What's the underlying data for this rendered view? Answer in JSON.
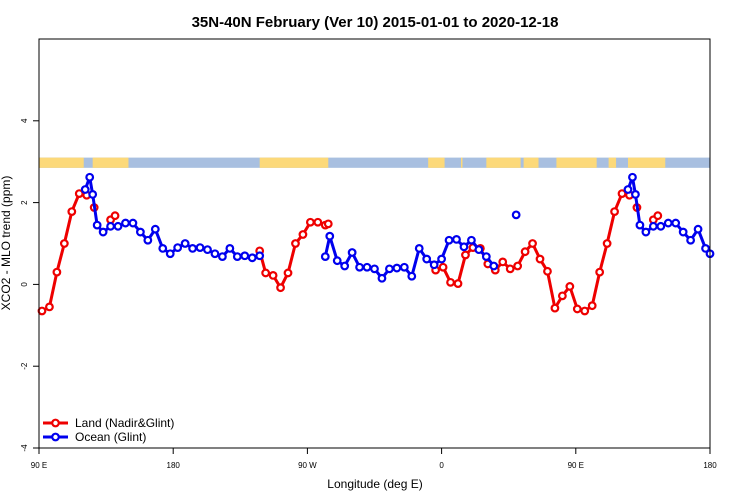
{
  "chart_data": {
    "type": "line",
    "title": "35N-40N February (Ver 10)   2015-01-01 to 2020-12-18",
    "xlabel": "Longitude (deg E)",
    "ylabel": "XCO2 - MLO trend (ppm)",
    "xlim": [
      90,
      540
    ],
    "ylim": [
      -4,
      6
    ],
    "xticks": [
      {
        "value": 90,
        "label": "90 E"
      },
      {
        "value": 180,
        "label": "180"
      },
      {
        "value": 270,
        "label": "90 W"
      },
      {
        "value": 360,
        "label": "0"
      },
      {
        "value": 450,
        "label": "90 E"
      },
      {
        "value": 540,
        "label": "180"
      }
    ],
    "yticks": [
      {
        "value": -4,
        "label": "-4"
      },
      {
        "value": -2,
        "label": "-2"
      },
      {
        "value": 0,
        "label": "0"
      },
      {
        "value": 2,
        "label": "2"
      },
      {
        "value": 4,
        "label": "4"
      }
    ],
    "legend_position": "bottom-left",
    "land_band": {
      "y_range": [
        2.85,
        3.1
      ],
      "ocean_color": "#a8bfe0",
      "land_color": "#fcd97a",
      "land_segments": [
        [
          90,
          120
        ],
        [
          126,
          150
        ],
        [
          238,
          284
        ],
        [
          351,
          362
        ],
        [
          373,
          374
        ],
        [
          390,
          413
        ],
        [
          415,
          425
        ],
        [
          437,
          464
        ],
        [
          472,
          477
        ],
        [
          485,
          510
        ]
      ]
    },
    "series": [
      {
        "name": "Land (Nadir&Glint)",
        "color": "#ee0000",
        "segments": [
          {
            "x": [
              92,
              97,
              102,
              107,
              112,
              117,
              122
            ],
            "y": [
              -0.65,
              -0.55,
              0.3,
              1.0,
              1.78,
              2.22,
              2.18
            ]
          },
          {
            "x": [
              127
            ],
            "y": [
              1.88
            ]
          },
          {
            "x": [
              138,
              141
            ],
            "y": [
              1.58,
              1.68
            ]
          },
          {
            "x": [
              238,
              242,
              247,
              252,
              257,
              262,
              267,
              272,
              277,
              282,
              284
            ],
            "y": [
              0.82,
              0.28,
              0.22,
              -0.08,
              0.28,
              1.0,
              1.22,
              1.52,
              1.52,
              1.45,
              1.48
            ]
          },
          {
            "x": [
              356,
              361,
              366,
              371,
              376,
              381,
              386,
              391,
              396,
              401,
              406
            ],
            "y": [
              0.35,
              0.42,
              0.05,
              0.02,
              0.72,
              0.9,
              0.88,
              0.5,
              0.35,
              0.55,
              0.38
            ]
          },
          {
            "x": [
              411,
              416,
              421,
              426,
              431,
              436,
              441,
              446,
              451,
              456,
              461,
              466,
              471,
              476,
              481,
              486
            ],
            "y": [
              0.45,
              0.8,
              1.0,
              0.62,
              0.32,
              -0.58,
              -0.28,
              -0.05,
              -0.6,
              -0.65,
              -0.52,
              0.3,
              1.0,
              1.78,
              2.22,
              2.18
            ]
          },
          {
            "x": [
              491
            ],
            "y": [
              1.88
            ]
          },
          {
            "x": [
              502,
              505
            ],
            "y": [
              1.58,
              1.68
            ]
          }
        ]
      },
      {
        "name": "Ocean (Glint)",
        "color": "#0000ee",
        "segments": [
          {
            "x": [
              121,
              124,
              126,
              129,
              133,
              138,
              143,
              148,
              153,
              158,
              163,
              168,
              173,
              178,
              183,
              188,
              193,
              198,
              203,
              208,
              213,
              218,
              223,
              228,
              233,
              238
            ],
            "y": [
              2.32,
              2.62,
              2.2,
              1.45,
              1.28,
              1.42,
              1.42,
              1.5,
              1.5,
              1.28,
              1.08,
              1.35,
              0.88,
              0.75,
              0.9,
              1.0,
              0.88,
              0.9,
              0.85,
              0.75,
              0.68,
              0.88,
              0.68,
              0.7,
              0.65,
              0.7
            ]
          },
          {
            "x": [
              282,
              285,
              290,
              295,
              300,
              305,
              310,
              315,
              320,
              325,
              330,
              335,
              340,
              345,
              350,
              355,
              360,
              365,
              370,
              375,
              380,
              385,
              390,
              395,
              400,
              405
            ],
            "y": [
              0.68,
              1.18,
              0.58,
              0.45,
              0.78,
              0.42,
              0.42,
              0.38,
              0.15,
              0.38,
              0.4,
              0.42,
              0.2,
              0.88,
              0.62,
              0.48,
              0.62,
              1.08,
              1.1,
              0.92,
              1.08,
              0.85,
              0.68,
              0.45,
              null,
              null
            ]
          },
          {
            "x": [
              410
            ],
            "y": [
              1.7
            ]
          },
          {
            "x": [
              485,
              488,
              490,
              493,
              497,
              502,
              507,
              512,
              517,
              522,
              527,
              532,
              537,
              540
            ],
            "y": [
              2.32,
              2.62,
              2.2,
              1.45,
              1.28,
              1.42,
              1.42,
              1.5,
              1.5,
              1.28,
              1.08,
              1.35,
              0.88,
              0.75
            ]
          }
        ]
      }
    ]
  }
}
